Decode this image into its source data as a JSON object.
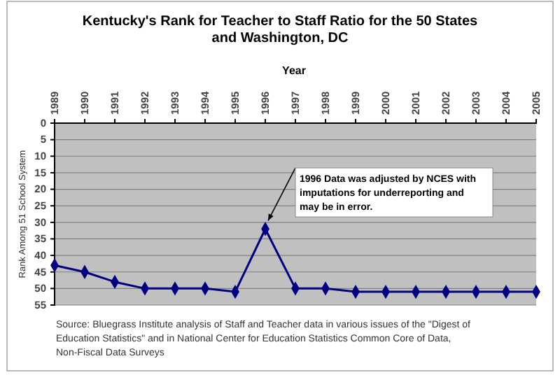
{
  "chart_data": {
    "type": "line",
    "title": "Kentucky's Rank for Teacher to Staff Ratio for the 50 States and Washington, DC",
    "xlabel": "Year",
    "ylabel": "Rank Among 51 School System",
    "categories": [
      "1989",
      "1990",
      "1991",
      "1992",
      "1993",
      "1994",
      "1995",
      "1996",
      "1997",
      "1998",
      "1999",
      "2000",
      "2001",
      "2002",
      "2003",
      "2004",
      "2005"
    ],
    "series": [
      {
        "color": "#000080",
        "values": [
          43,
          45,
          48,
          50,
          50,
          50,
          51,
          32,
          50,
          50,
          51,
          51,
          51,
          51,
          51,
          51,
          51
        ]
      }
    ],
    "ylim": [
      55,
      0
    ],
    "yticks": [
      0,
      5,
      10,
      15,
      20,
      25,
      30,
      35,
      40,
      45,
      50,
      55
    ],
    "grid": "y",
    "marker": "diamond",
    "line_style": "solid",
    "annotations": [
      {
        "text": "1996 Data was adjusted by NCES with imputations for underreporting and may be in error.",
        "x": "1996",
        "y": 32
      },
      "Source: Bluegrass Institute analysis of Staff and Teacher data in various issues of the \"Digest of Education Statistics\" and in National Center for Education Statistics Common Core of Data, Non-Fiscal Data Surveys"
    ]
  }
}
